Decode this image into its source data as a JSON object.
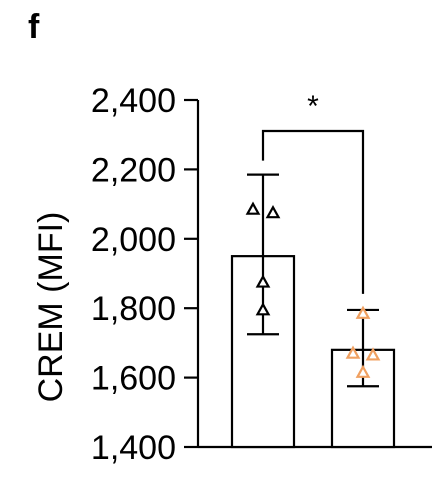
{
  "panel_label": "f",
  "chart_data": {
    "type": "bar",
    "title": "",
    "xlabel": "",
    "ylabel": "CREM (MFI)",
    "ylim": [
      1400,
      2400
    ],
    "yticks": [
      1400,
      1600,
      1800,
      2000,
      2200,
      2400
    ],
    "ytick_labels": [
      "1,400",
      "1,600",
      "1,800",
      "2,000",
      "2,200",
      "2,400"
    ],
    "groups": [
      {
        "mean": 1950,
        "error_low": 1725,
        "error_high": 2185,
        "marker": "triangle-open",
        "marker_color": "#000000",
        "points": [
          2085,
          2075,
          1875,
          1795
        ]
      },
      {
        "mean": 1680,
        "error_low": 1575,
        "error_high": 1795,
        "marker": "triangle-open",
        "marker_color": "#f0a060",
        "points": [
          1785,
          1670,
          1665,
          1615
        ]
      }
    ],
    "annotation": {
      "text": "*",
      "between": [
        0,
        1
      ]
    },
    "grid": false
  }
}
